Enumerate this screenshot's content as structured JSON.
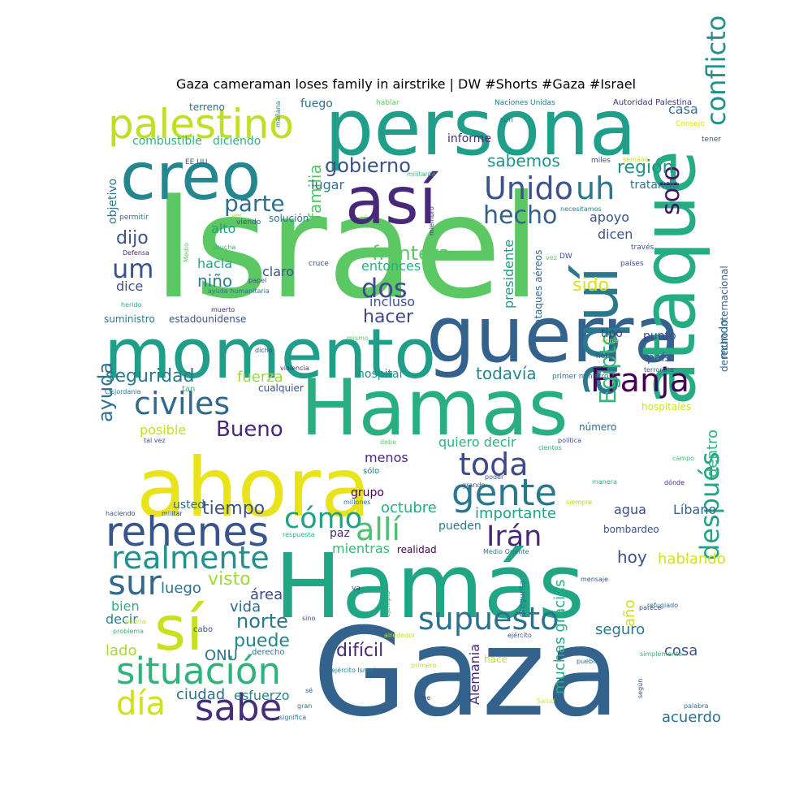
{
  "title": "Gaza cameraman loses family in airstrike | DW #Shorts #Gaza #Israel",
  "chart_data": {
    "type": "wordcloud",
    "palette": "viridis",
    "words": [
      {
        "text": "Israel",
        "color": "#5cc863"
      },
      {
        "text": "Gaza",
        "color": "#33638d"
      },
      {
        "text": "Hamás",
        "color": "#21a685"
      },
      {
        "text": "ahora",
        "color": "#e8e419"
      },
      {
        "text": "Hamas",
        "color": "#29af7f"
      },
      {
        "text": "persona",
        "color": "#1f9e89"
      },
      {
        "text": "guerra",
        "color": "#33638d"
      },
      {
        "text": "momento",
        "color": "#1f9e89"
      },
      {
        "text": "ataque",
        "color": "#25ac82"
      },
      {
        "text": "creo",
        "color": "#24868e"
      },
      {
        "text": "así",
        "color": "#482878"
      },
      {
        "text": "aquí",
        "color": "#2a788e"
      },
      {
        "text": "sí",
        "color": "#c8e020"
      },
      {
        "text": "palestino",
        "color": "#bddf26"
      },
      {
        "text": "Franja",
        "color": "#440154"
      },
      {
        "text": "rehenes",
        "color": "#39568c"
      },
      {
        "text": "gente",
        "color": "#2a788e"
      },
      {
        "text": "situación",
        "color": "#2eb37c"
      },
      {
        "text": "supuesto",
        "color": "#2c728e"
      },
      {
        "text": "civiles",
        "color": "#31688e"
      },
      {
        "text": "conflicto",
        "color": "#21918c"
      },
      {
        "text": "después",
        "color": "#20a386"
      },
      {
        "text": "sabe",
        "color": "#472d7b"
      },
      {
        "text": "Unido",
        "color": "#3b528b"
      },
      {
        "text": "uh",
        "color": "#2a788e"
      },
      {
        "text": "realmente",
        "color": "#21918c"
      },
      {
        "text": "sur",
        "color": "#31688e"
      },
      {
        "text": "toda",
        "color": "#3e4989"
      },
      {
        "text": "allí",
        "color": "#4ac16d"
      },
      {
        "text": "cómo",
        "color": "#1fa187"
      },
      {
        "text": "Irán",
        "color": "#482878"
      },
      {
        "text": "Egipto",
        "color": "#35b779"
      },
      {
        "text": "día",
        "color": "#d0e11c"
      },
      {
        "text": "parte",
        "color": "#2d708e"
      },
      {
        "text": "hecho",
        "color": "#35608d"
      },
      {
        "text": "dos",
        "color": "#3e4c8a"
      },
      {
        "text": "solo",
        "color": "#471365"
      },
      {
        "text": "ayuda",
        "color": "#2c728e"
      },
      {
        "text": "gobierno",
        "color": "#3b528b"
      },
      {
        "text": "um",
        "color": "#3b528b"
      },
      {
        "text": "Bueno",
        "color": "#482878"
      },
      {
        "text": "familia",
        "color": "#54c568"
      },
      {
        "text": "frontera",
        "color": "#5cc863"
      },
      {
        "text": "seguridad",
        "color": "#2a788e"
      },
      {
        "text": "sabemos",
        "color": "#20928c"
      },
      {
        "text": "región",
        "color": "#20938c"
      },
      {
        "text": "dijo",
        "color": "#3b528b"
      },
      {
        "text": "niño",
        "color": "#25838e"
      },
      {
        "text": "sido",
        "color": "#d8e219"
      },
      {
        "text": "hacer",
        "color": "#3e4989"
      },
      {
        "text": "fuerza",
        "color": "#9bd93c"
      },
      {
        "text": "todavía",
        "color": "#24878e"
      },
      {
        "text": "visto",
        "color": "#a0da39"
      },
      {
        "text": "tiempo",
        "color": "#3b528b"
      },
      {
        "text": "octubre",
        "color": "#27ad81"
      },
      {
        "text": "importante",
        "color": "#20a386"
      },
      {
        "text": "norte",
        "color": "#2a788e"
      },
      {
        "text": "puede",
        "color": "#25848e"
      },
      {
        "text": "difícil",
        "color": "#482878"
      },
      {
        "text": "ciudad",
        "color": "#2c728e"
      },
      {
        "text": "esfuerzo",
        "color": "#27808e"
      },
      {
        "text": "lado",
        "color": "#a5db36"
      },
      {
        "text": "decir",
        "color": "#25858e"
      },
      {
        "text": "bien",
        "color": "#29af7f"
      },
      {
        "text": "luego",
        "color": "#2c728e"
      },
      {
        "text": "área",
        "color": "#3e4989"
      },
      {
        "text": "vida",
        "color": "#31688e"
      },
      {
        "text": "ONU",
        "color": "#2c728e"
      },
      {
        "text": "acuerdo",
        "color": "#2c728e"
      },
      {
        "text": "cosa",
        "color": "#3b528b"
      },
      {
        "text": "año",
        "color": "#cde11d"
      },
      {
        "text": "muchas gracias",
        "color": "#25ac82"
      },
      {
        "text": "Alemania",
        "color": "#482878"
      },
      {
        "text": "seguro",
        "color": "#2a788e"
      },
      {
        "text": "hoy",
        "color": "#3b528b"
      },
      {
        "text": "hablando",
        "color": "#d2e21b"
      },
      {
        "text": "agua",
        "color": "#3e4a89"
      },
      {
        "text": "Líbano",
        "color": "#33638d"
      },
      {
        "text": "dentro",
        "color": "#2eb37c"
      },
      {
        "text": "mundo",
        "color": "#2d718e"
      },
      {
        "text": "punto",
        "color": "#3f4889"
      },
      {
        "text": "tipo",
        "color": "#433e85"
      },
      {
        "text": "país",
        "color": "#3b528b"
      },
      {
        "text": "hospital",
        "color": "#21918c"
      },
      {
        "text": "menos",
        "color": "#482878"
      },
      {
        "text": "quiero decir",
        "color": "#2eb37c"
      },
      {
        "text": "posible",
        "color": "#c2df23"
      },
      {
        "text": "usted",
        "color": "#30698e"
      },
      {
        "text": "paz",
        "color": "#472d7b"
      },
      {
        "text": "mientras",
        "color": "#37b878"
      },
      {
        "text": "pueden",
        "color": "#2a788e"
      },
      {
        "text": "grupo",
        "color": "#440154"
      },
      {
        "text": "entonces",
        "color": "#29af7f"
      },
      {
        "text": "incluso",
        "color": "#3b528b"
      },
      {
        "text": "presidente",
        "color": "#1f9e89"
      },
      {
        "text": "ataques aéreos",
        "color": "#31688e"
      },
      {
        "text": "lugar",
        "color": "#2a788e"
      },
      {
        "text": "claro",
        "color": "#3b528b"
      },
      {
        "text": "hacia",
        "color": "#20a386"
      },
      {
        "text": "dice",
        "color": "#3b528b"
      },
      {
        "text": "alto",
        "color": "#1fa187"
      },
      {
        "text": "apoyo",
        "color": "#3b528b"
      },
      {
        "text": "dicen",
        "color": "#3b528b"
      },
      {
        "text": "tratando",
        "color": "#2c728e"
      },
      {
        "text": "casa",
        "color": "#2d718e"
      },
      {
        "text": "informe",
        "color": "#472d7b"
      },
      {
        "text": "fuego",
        "color": "#2c728e"
      },
      {
        "text": "terreno",
        "color": "#2c728e"
      },
      {
        "text": "combustible",
        "color": "#2eb37c"
      },
      {
        "text": "diciendo",
        "color": "#2eb37c"
      },
      {
        "text": "objetivo",
        "color": "#2c728e"
      },
      {
        "text": "suministro",
        "color": "#2a788e"
      },
      {
        "text": "estadounidense",
        "color": "#3b528b"
      },
      {
        "text": "solución",
        "color": "#2c728e"
      },
      {
        "text": "cualquier",
        "color": "#3b528b"
      },
      {
        "text": "hospitales",
        "color": "#d8e219"
      },
      {
        "text": "número",
        "color": "#31688e"
      },
      {
        "text": "derecho internacional",
        "color": "#35608d"
      },
      {
        "text": "bombardeo",
        "color": "#3b528b"
      },
      {
        "text": "realidad",
        "color": "#440154"
      },
      {
        "text": "Autoridad Palestina",
        "color": "#472d7b"
      },
      {
        "text": "Naciones Unidas",
        "color": "#2a788e"
      },
      {
        "text": "hablar",
        "color": "#5ec962"
      },
      {
        "text": "aún",
        "color": "#2a788e"
      },
      {
        "text": "Consejo",
        "color": "#d8e219"
      },
      {
        "text": "tener",
        "color": "#3b528b"
      },
      {
        "text": "miles",
        "color": "#3b528b"
      },
      {
        "text": "semana",
        "color": "#bddf26"
      },
      {
        "text": "EE UU",
        "color": "#3b528b"
      },
      {
        "text": "militante",
        "color": "#35b779"
      },
      {
        "text": "mañana",
        "color": "#2a788e"
      },
      {
        "text": "permitir",
        "color": "#2c728e"
      },
      {
        "text": "ver",
        "color": "#b5de2b"
      },
      {
        "text": "viendo",
        "color": "#3b528b"
      },
      {
        "text": "miembro",
        "color": "#472d7b"
      },
      {
        "text": "necesitamos",
        "color": "#2a788e"
      },
      {
        "text": "través",
        "color": "#3b528b"
      },
      {
        "text": "Defensa",
        "color": "#482878"
      },
      {
        "text": "mucha",
        "color": "#35b779"
      },
      {
        "text": "Medio",
        "color": "#5ec962"
      },
      {
        "text": "cruce",
        "color": "#3e4989"
      },
      {
        "text": "vez",
        "color": "#5ec962"
      },
      {
        "text": "DW",
        "color": "#3b528b"
      },
      {
        "text": "países",
        "color": "#3b528b"
      },
      {
        "text": "papel",
        "color": "#3b528b"
      },
      {
        "text": "ayuda humanitaria",
        "color": "#2c728e"
      },
      {
        "text": "herido",
        "color": "#25ac82"
      },
      {
        "text": "muerto",
        "color": "#482878"
      },
      {
        "text": "mismo",
        "color": "#5ec962"
      },
      {
        "text": "dicho",
        "color": "#3b528b"
      },
      {
        "text": "cerca",
        "color": "#cde11d"
      },
      {
        "text": "hora",
        "color": "#3b528b"
      },
      {
        "text": "violencia",
        "color": "#472d7b"
      },
      {
        "text": "tan",
        "color": "#2eb37c"
      },
      {
        "text": "terrorista",
        "color": "#3b528b"
      },
      {
        "text": "Cisjordania",
        "color": "#2c728e"
      },
      {
        "text": "primer ministro",
        "color": "#2a788e"
      },
      {
        "text": "tal vez",
        "color": "#3b528b"
      },
      {
        "text": "debe",
        "color": "#5ec962"
      },
      {
        "text": "política",
        "color": "#3b528b"
      },
      {
        "text": "cientos",
        "color": "#2eb37c"
      },
      {
        "text": "campo",
        "color": "#3dbc74"
      },
      {
        "text": "sólo",
        "color": "#2a788e"
      },
      {
        "text": "grande",
        "color": "#3b528b"
      },
      {
        "text": "poder",
        "color": "#3b528b"
      },
      {
        "text": "manera",
        "color": "#2eb37c"
      },
      {
        "text": "dónde",
        "color": "#482878"
      },
      {
        "text": "millones",
        "color": "#2c728e"
      },
      {
        "text": "siempre",
        "color": "#b5de2b"
      },
      {
        "text": "haciendo",
        "color": "#3b528b"
      },
      {
        "text": "militar",
        "color": "#3b528b"
      },
      {
        "text": "respuesta",
        "color": "#2eb37c"
      },
      {
        "text": "Medio Oriente",
        "color": "#2a788e"
      },
      {
        "text": "mensaje",
        "color": "#3b528b"
      },
      {
        "text": "parece",
        "color": "#3b528b"
      },
      {
        "text": "refugiado",
        "color": "#2c728e"
      },
      {
        "text": "ejemplo",
        "color": "#2eb37c"
      },
      {
        "text": "podría",
        "color": "#c2df23"
      },
      {
        "text": "problema",
        "color": "#2eb37c"
      },
      {
        "text": "sino",
        "color": "#3b528b"
      },
      {
        "text": "alrededor",
        "color": "#c2df23"
      },
      {
        "text": "ejército",
        "color": "#3b528b"
      },
      {
        "text": "ejército Israel",
        "color": "#2a788e"
      },
      {
        "text": "primero",
        "color": "#bddf26"
      },
      {
        "text": "pueblo",
        "color": "#2c728e"
      },
      {
        "text": "simplemente",
        "color": "#2eb37c"
      },
      {
        "text": "pregunta",
        "color": "#2c728e"
      },
      {
        "text": "va",
        "color": "#3b528b"
      },
      {
        "text": "sé",
        "color": "#3b528b"
      },
      {
        "text": "cabo",
        "color": "#3b528b"
      },
      {
        "text": "derecho",
        "color": "#2c728e"
      },
      {
        "text": "hace",
        "color": "#bddf26"
      },
      {
        "text": "cree",
        "color": "#3b528b"
      },
      {
        "text": "Salud",
        "color": "#d8e219"
      },
      {
        "text": "gran",
        "color": "#2a788e"
      },
      {
        "text": "significa",
        "color": "#2c728e"
      },
      {
        "text": "según",
        "color": "#3b528b"
      },
      {
        "text": "palabra",
        "color": "#2a788e"
      }
    ]
  }
}
